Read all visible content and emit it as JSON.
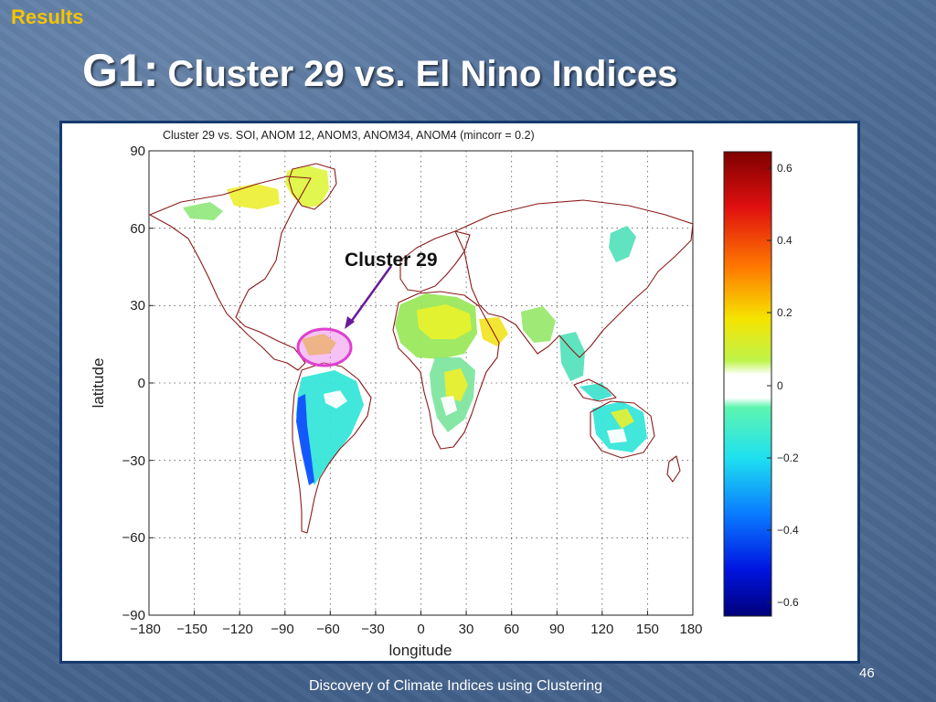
{
  "slide": {
    "section_label": "Results",
    "title_prefix": "G1:",
    "title_rest": "Cluster 29 vs. El Nino Indices",
    "footer": "Discovery of Climate Indices using Clustering",
    "page_number": "46"
  },
  "map": {
    "title": "Cluster 29 vs. SOI, ANOM 12, ANOM3, ANOM34, ANOM4 (mincorr = 0.2)",
    "xlabel": "longitude",
    "ylabel": "latitude",
    "x_ticks": [
      "−180",
      "−150",
      "−120",
      "−90",
      "−60",
      "−30",
      "0",
      "30",
      "60",
      "90",
      "120",
      "150",
      "180"
    ],
    "y_ticks": [
      "90",
      "60",
      "30",
      "0",
      "−30",
      "−60",
      "−90"
    ],
    "annotation": "Cluster 29",
    "colorbar_ticks": [
      "0.6",
      "0.4",
      "0.2",
      "0",
      "−0.2",
      "−0.4",
      "−0.6"
    ],
    "colors": {
      "coastline": "#8b1a1a",
      "highlight": "#e040d0",
      "arrow": "#6a1a9a"
    }
  }
}
